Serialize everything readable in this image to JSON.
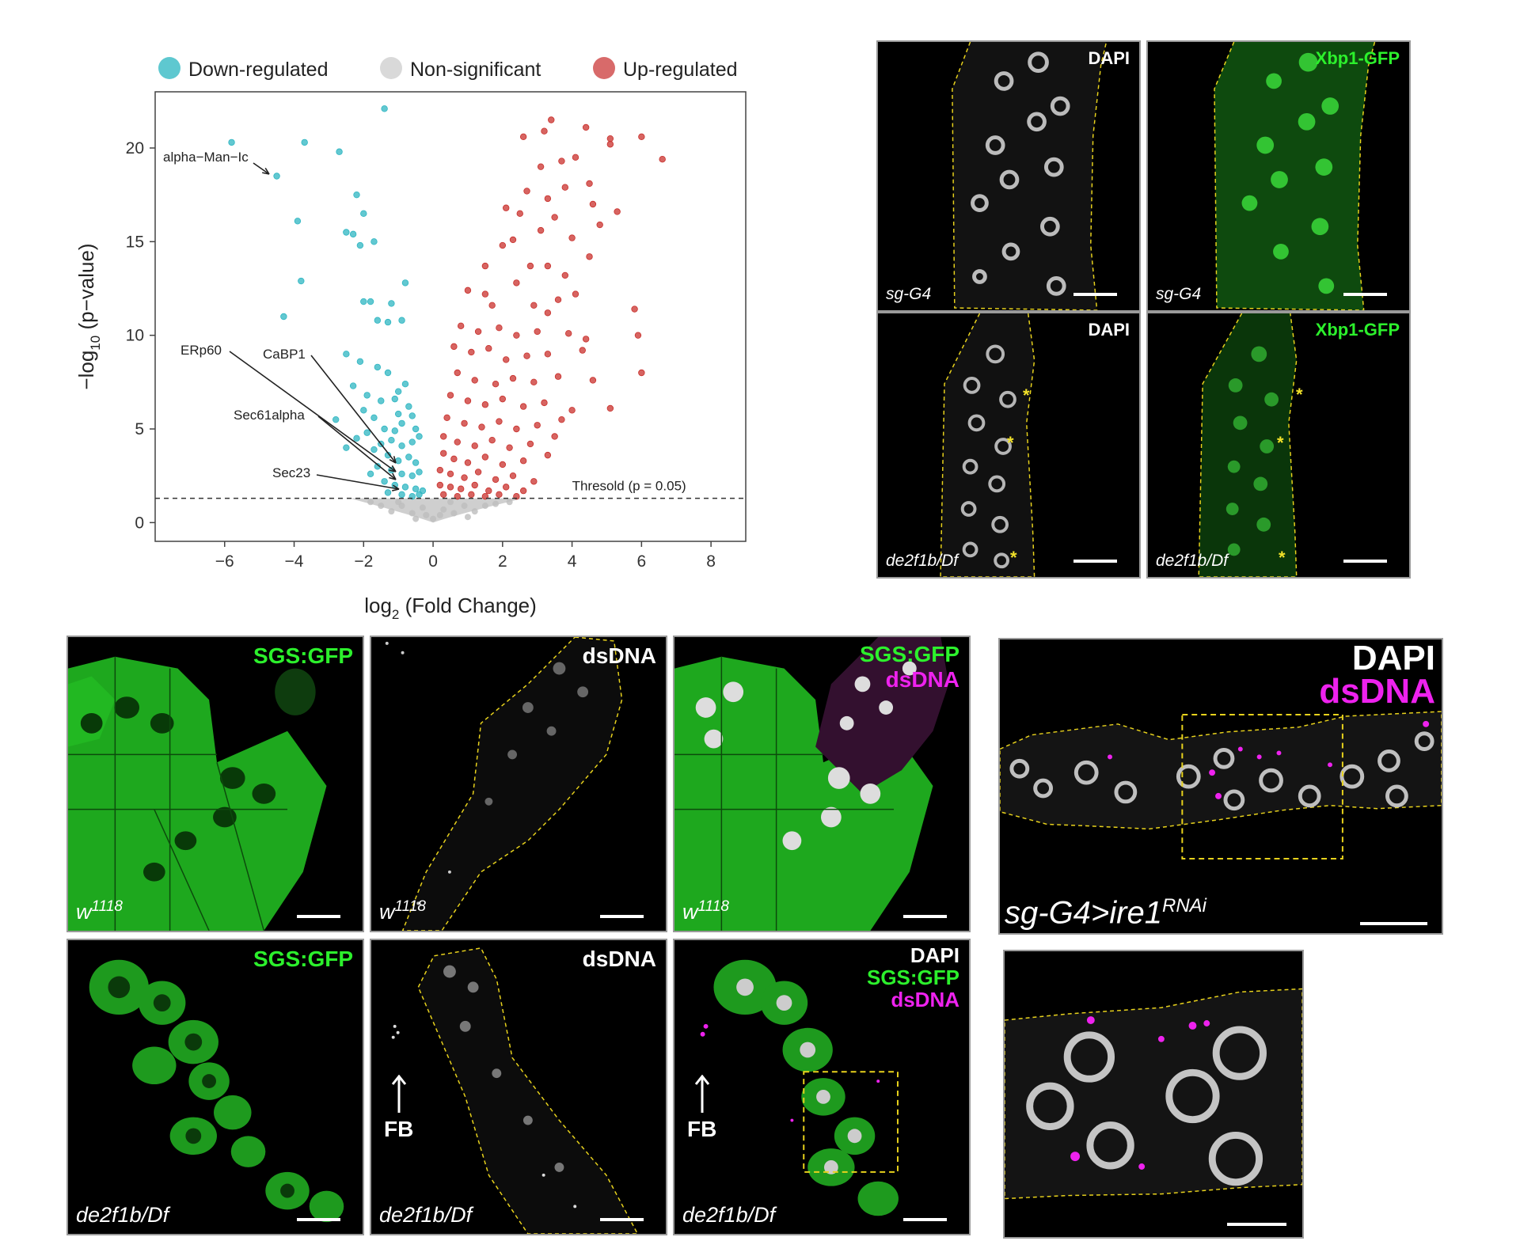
{
  "volcano": {
    "legend": [
      {
        "label": "Down-regulated",
        "color": "#5ec8d0"
      },
      {
        "label": "Non-significant",
        "color": "#d9d9d9"
      },
      {
        "label": "Up-regulated",
        "color": "#d86a6a"
      }
    ],
    "xlabel_main": "log",
    "xlabel_sub": "2",
    "xlabel_rest": " (Fold Change)",
    "ylabel_pre": "−log",
    "ylabel_sub": "10",
    "ylabel_rest": " (p−value)",
    "threshold_label": "Thresold (p = 0.05)"
  },
  "chart_data": {
    "type": "scatter",
    "title": "",
    "xlabel": "log2 (Fold Change)",
    "ylabel": "-log10 (p-value)",
    "xlim": [
      -8,
      9
    ],
    "ylim": [
      -1,
      23
    ],
    "xticks": [
      -6,
      -4,
      -2,
      0,
      2,
      4,
      6,
      8
    ],
    "yticks": [
      0,
      5,
      10,
      15,
      20
    ],
    "threshold_y": 1.3,
    "threshold_label": "Thresold (p = 0.05)",
    "series": [
      {
        "name": "Down-regulated",
        "color": "#2eb6c2",
        "points": [
          [
            -5.8,
            20.3
          ],
          [
            -4.5,
            18.5
          ],
          [
            -3.7,
            20.3
          ],
          [
            -2.7,
            19.8
          ],
          [
            -1.4,
            22.1
          ],
          [
            -2.2,
            17.5
          ],
          [
            -3.9,
            16.1
          ],
          [
            -2.0,
            16.5
          ],
          [
            -2.5,
            15.5
          ],
          [
            -2.1,
            14.8
          ],
          [
            -1.7,
            15.0
          ],
          [
            -2.3,
            15.4
          ],
          [
            -3.8,
            12.9
          ],
          [
            -4.3,
            11.0
          ],
          [
            -2.0,
            11.8
          ],
          [
            -1.8,
            11.8
          ],
          [
            -1.2,
            11.7
          ],
          [
            -0.8,
            12.8
          ],
          [
            -1.6,
            10.8
          ],
          [
            -1.3,
            10.7
          ],
          [
            -0.9,
            10.8
          ],
          [
            -2.5,
            9.0
          ],
          [
            -2.1,
            8.6
          ],
          [
            -1.6,
            8.3
          ],
          [
            -1.3,
            8.0
          ],
          [
            -2.3,
            7.3
          ],
          [
            -1.9,
            6.8
          ],
          [
            -1.5,
            6.5
          ],
          [
            -1.1,
            6.6
          ],
          [
            -0.8,
            7.4
          ],
          [
            -2.0,
            6.0
          ],
          [
            -1.7,
            5.6
          ],
          [
            -1.4,
            5.0
          ],
          [
            -1.1,
            4.9
          ],
          [
            -0.9,
            5.3
          ],
          [
            -0.6,
            5.7
          ],
          [
            -1.9,
            4.8
          ],
          [
            -1.5,
            4.2
          ],
          [
            -1.2,
            4.4
          ],
          [
            -0.9,
            4.1
          ],
          [
            -0.6,
            4.3
          ],
          [
            -0.4,
            4.6
          ],
          [
            -1.7,
            3.9
          ],
          [
            -1.3,
            3.6
          ],
          [
            -1.0,
            3.3
          ],
          [
            -0.7,
            3.5
          ],
          [
            -0.5,
            3.2
          ],
          [
            -1.6,
            3.0
          ],
          [
            -1.2,
            2.8
          ],
          [
            -0.9,
            2.6
          ],
          [
            -0.6,
            2.5
          ],
          [
            -0.4,
            2.7
          ],
          [
            -1.4,
            2.2
          ],
          [
            -1.1,
            2.0
          ],
          [
            -0.8,
            1.9
          ],
          [
            -0.5,
            1.8
          ],
          [
            -0.3,
            1.7
          ],
          [
            -1.3,
            1.6
          ],
          [
            -0.9,
            1.5
          ],
          [
            -0.6,
            1.4
          ],
          [
            -0.4,
            1.5
          ],
          [
            -2.2,
            4.5
          ],
          [
            -2.5,
            4.0
          ],
          [
            -1.8,
            2.6
          ],
          [
            -0.7,
            6.2
          ],
          [
            -1.0,
            7.0
          ],
          [
            -0.5,
            5.0
          ],
          [
            -2.8,
            5.5
          ],
          [
            -1.0,
            5.8
          ]
        ]
      },
      {
        "name": "Up-regulated",
        "color": "#c9302c",
        "points": [
          [
            3.4,
            21.5
          ],
          [
            3.2,
            20.9
          ],
          [
            4.4,
            21.1
          ],
          [
            5.1,
            20.5
          ],
          [
            5.1,
            20.2
          ],
          [
            6.0,
            20.6
          ],
          [
            6.6,
            19.4
          ],
          [
            4.1,
            19.5
          ],
          [
            3.7,
            19.3
          ],
          [
            3.1,
            19.0
          ],
          [
            2.6,
            20.6
          ],
          [
            4.5,
            18.1
          ],
          [
            3.8,
            17.9
          ],
          [
            3.3,
            17.3
          ],
          [
            2.7,
            17.7
          ],
          [
            2.5,
            16.5
          ],
          [
            3.5,
            16.3
          ],
          [
            3.1,
            15.6
          ],
          [
            4.0,
            15.2
          ],
          [
            4.8,
            15.9
          ],
          [
            5.3,
            16.6
          ],
          [
            2.1,
            16.8
          ],
          [
            2.0,
            14.8
          ],
          [
            2.8,
            13.7
          ],
          [
            3.3,
            13.7
          ],
          [
            3.8,
            13.2
          ],
          [
            4.5,
            14.2
          ],
          [
            2.4,
            12.8
          ],
          [
            1.5,
            13.7
          ],
          [
            1.0,
            12.4
          ],
          [
            1.5,
            12.2
          ],
          [
            2.9,
            11.6
          ],
          [
            3.3,
            11.2
          ],
          [
            4.1,
            12.2
          ],
          [
            5.8,
            11.4
          ],
          [
            0.8,
            10.5
          ],
          [
            1.3,
            10.2
          ],
          [
            1.9,
            10.4
          ],
          [
            2.4,
            10.0
          ],
          [
            3.0,
            10.2
          ],
          [
            3.9,
            10.1
          ],
          [
            5.9,
            10.0
          ],
          [
            0.6,
            9.4
          ],
          [
            1.1,
            9.1
          ],
          [
            1.6,
            9.3
          ],
          [
            2.1,
            8.7
          ],
          [
            2.7,
            8.9
          ],
          [
            3.3,
            9.0
          ],
          [
            4.3,
            9.2
          ],
          [
            6.0,
            8.0
          ],
          [
            0.7,
            8.0
          ],
          [
            1.2,
            7.6
          ],
          [
            1.8,
            7.4
          ],
          [
            2.3,
            7.7
          ],
          [
            2.9,
            7.5
          ],
          [
            3.6,
            7.8
          ],
          [
            4.6,
            7.6
          ],
          [
            0.5,
            6.8
          ],
          [
            1.0,
            6.5
          ],
          [
            1.5,
            6.3
          ],
          [
            2.0,
            6.6
          ],
          [
            2.6,
            6.2
          ],
          [
            3.2,
            6.4
          ],
          [
            4.0,
            6.0
          ],
          [
            5.1,
            6.1
          ],
          [
            0.4,
            5.6
          ],
          [
            0.9,
            5.3
          ],
          [
            1.4,
            5.1
          ],
          [
            1.9,
            5.4
          ],
          [
            2.4,
            5.0
          ],
          [
            3.0,
            5.2
          ],
          [
            3.7,
            5.5
          ],
          [
            0.3,
            4.6
          ],
          [
            0.7,
            4.3
          ],
          [
            1.2,
            4.1
          ],
          [
            1.7,
            4.4
          ],
          [
            2.2,
            4.0
          ],
          [
            2.8,
            4.2
          ],
          [
            3.5,
            4.6
          ],
          [
            0.3,
            3.7
          ],
          [
            0.6,
            3.4
          ],
          [
            1.0,
            3.2
          ],
          [
            1.5,
            3.5
          ],
          [
            2.0,
            3.1
          ],
          [
            2.6,
            3.3
          ],
          [
            3.3,
            3.6
          ],
          [
            0.2,
            2.8
          ],
          [
            0.5,
            2.6
          ],
          [
            0.9,
            2.4
          ],
          [
            1.3,
            2.7
          ],
          [
            1.8,
            2.3
          ],
          [
            2.3,
            2.5
          ],
          [
            2.9,
            2.2
          ],
          [
            0.2,
            2.0
          ],
          [
            0.5,
            1.9
          ],
          [
            0.8,
            1.8
          ],
          [
            1.2,
            2.0
          ],
          [
            1.6,
            1.7
          ],
          [
            2.1,
            1.9
          ],
          [
            2.6,
            1.7
          ],
          [
            0.3,
            1.5
          ],
          [
            0.7,
            1.4
          ],
          [
            1.1,
            1.5
          ],
          [
            1.5,
            1.4
          ],
          [
            1.9,
            1.5
          ],
          [
            2.4,
            1.4
          ],
          [
            4.6,
            17.0
          ],
          [
            2.3,
            15.1
          ],
          [
            4.4,
            9.8
          ],
          [
            1.7,
            11.6
          ],
          [
            3.6,
            11.9
          ]
        ]
      },
      {
        "name": "Non-significant",
        "color": "#bdbdbd",
        "points": [
          [
            -1.5,
            0.9
          ],
          [
            -1.2,
            0.6
          ],
          [
            -0.9,
            0.9
          ],
          [
            -0.6,
            0.5
          ],
          [
            -0.3,
            0.8
          ],
          [
            0.0,
            0.2
          ],
          [
            0.3,
            0.7
          ],
          [
            0.6,
            0.5
          ],
          [
            0.9,
            0.9
          ],
          [
            1.2,
            0.6
          ],
          [
            1.5,
            0.9
          ],
          [
            1.8,
            1.0
          ],
          [
            -1.0,
            1.1
          ],
          [
            0.5,
            1.1
          ],
          [
            1.0,
            0.3
          ],
          [
            -0.5,
            0.2
          ],
          [
            2.2,
            1.1
          ],
          [
            -1.8,
            1.1
          ],
          [
            0.2,
            0.4
          ],
          [
            -0.2,
            0.4
          ]
        ]
      }
    ],
    "annotations": [
      {
        "text": "alpha−Man−Ic",
        "x": -4.5,
        "y": 18.5
      },
      {
        "text": "ERp60",
        "x": -0.9,
        "y": 3.2
      },
      {
        "text": "CaBP1",
        "x": -0.9,
        "y": 2.8
      },
      {
        "text": "Sec61alpha",
        "x": -0.8,
        "y": 2.3
      },
      {
        "text": "Sec23",
        "x": -0.8,
        "y": 1.8
      }
    ]
  },
  "micrographs": {
    "p1": {
      "channel": "DAPI",
      "genotype": "sg-G4"
    },
    "p2": {
      "channel": "Xbp1-GFP",
      "genotype": "sg-G4"
    },
    "p3": {
      "channel": "DAPI",
      "genotype": "de2f1b/Df",
      "marker": "*"
    },
    "p4": {
      "channel": "Xbp1-GFP",
      "genotype": "de2f1b/Df",
      "marker": "*"
    },
    "q1": {
      "channel": "SGS:GFP",
      "genotype_base": "w",
      "genotype_sup": "1118"
    },
    "q2": {
      "channel": "dsDNA",
      "genotype_base": "w",
      "genotype_sup": "1118"
    },
    "q3": {
      "channel1": "SGS:GFP",
      "channel2": "dsDNA",
      "genotype_base": "w",
      "genotype_sup": "1118"
    },
    "q4": {
      "channel": "SGS:GFP",
      "genotype": "de2f1b/Df"
    },
    "q5": {
      "channel": "dsDNA",
      "genotype": "de2f1b/Df",
      "arrow_label": "FB"
    },
    "q6": {
      "channel1": "DAPI",
      "channel2": "SGS:GFP",
      "channel3": "dsDNA",
      "genotype": "de2f1b/Df",
      "arrow_label": "FB"
    },
    "r1": {
      "channel1": "DAPI",
      "channel2": "dsDNA",
      "genotype_base": "sg-G4>ire1",
      "genotype_sup": "RNAi"
    },
    "r2": {}
  }
}
